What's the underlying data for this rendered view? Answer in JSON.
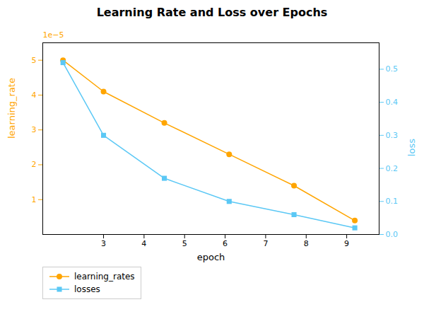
{
  "chart_data": {
    "type": "line",
    "title": "Learning Rate and Loss over Epochs",
    "xlabel": "epoch",
    "ylabel": "learning_rate",
    "y2label": "loss",
    "x": [
      2.0,
      3.0,
      4.5,
      6.1,
      7.7,
      9.2
    ],
    "series": [
      {
        "name": "learning_rates",
        "color": "#FFA500",
        "marker": "circle",
        "values": [
          5e-05,
          4.1e-05,
          3.2e-05,
          2.3e-05,
          1.4e-05,
          4e-06
        ]
      },
      {
        "name": "losses",
        "color": "#5BC8F5",
        "marker": "square",
        "axis": "y2",
        "values": [
          0.52,
          0.3,
          0.17,
          0.1,
          0.06,
          0.02
        ]
      }
    ],
    "xlim": [
      1.5,
      9.8
    ],
    "ylim": [
      0,
      5.5e-05
    ],
    "y2lim": [
      0,
      0.58
    ],
    "xticks": [
      3,
      4,
      5,
      6,
      7,
      8,
      9
    ],
    "yticks": [
      {
        "value": 1e-05,
        "label": "1"
      },
      {
        "value": 2e-05,
        "label": "2"
      },
      {
        "value": 3e-05,
        "label": "3"
      },
      {
        "value": 4e-05,
        "label": "4"
      },
      {
        "value": 5e-05,
        "label": "5"
      }
    ],
    "y2ticks": [
      {
        "value": 0.0,
        "label": "0.0"
      },
      0.1,
      0.2,
      0.3,
      0.4,
      0.5
    ],
    "annotations": [
      "1e−5"
    ],
    "legend": "lower left",
    "grid": false
  }
}
